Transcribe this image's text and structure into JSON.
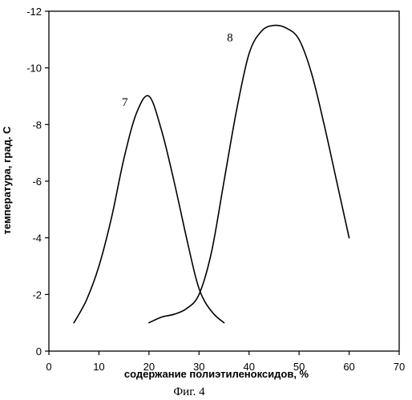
{
  "chart_data": {
    "type": "line",
    "title": "",
    "xlabel": "содержание полиэтиленоксидов, %",
    "ylabel": "температура, град. С",
    "caption": "Фиг. 4",
    "xlim": [
      0,
      70
    ],
    "ylim": [
      0,
      -12
    ],
    "x_ticks": [
      0,
      10,
      20,
      30,
      40,
      50,
      60,
      70
    ],
    "y_ticks": [
      0,
      -2,
      -4,
      -6,
      -8,
      -10,
      -12
    ],
    "x_tick_labels": [
      "0",
      "10",
      "20",
      "30",
      "40",
      "50",
      "60",
      "70"
    ],
    "y_tick_labels": [
      "0",
      "-2",
      "-4",
      "-6",
      "-8",
      "-10",
      "-12"
    ],
    "grid": false,
    "series": [
      {
        "name": "7",
        "points": [
          [
            5,
            -1.0
          ],
          [
            7.5,
            -1.8
          ],
          [
            10,
            -3.0
          ],
          [
            12.5,
            -4.7
          ],
          [
            15,
            -6.8
          ],
          [
            17.5,
            -8.4
          ],
          [
            20,
            -9.0
          ],
          [
            22.5,
            -7.8
          ],
          [
            25,
            -6.0
          ],
          [
            27.5,
            -4.0
          ],
          [
            29.5,
            -2.5
          ],
          [
            31,
            -1.8
          ],
          [
            33,
            -1.3
          ],
          [
            35,
            -1.0
          ]
        ]
      },
      {
        "name": "8",
        "points": [
          [
            20,
            -1.0
          ],
          [
            22.5,
            -1.2
          ],
          [
            25,
            -1.3
          ],
          [
            27.5,
            -1.5
          ],
          [
            30,
            -2.0
          ],
          [
            32.5,
            -3.5
          ],
          [
            35,
            -6.0
          ],
          [
            37.5,
            -8.5
          ],
          [
            40,
            -10.5
          ],
          [
            42.5,
            -11.3
          ],
          [
            45,
            -11.5
          ],
          [
            47.5,
            -11.4
          ],
          [
            50,
            -11.0
          ],
          [
            52.5,
            -9.8
          ],
          [
            55,
            -8.0
          ],
          [
            57.5,
            -6.0
          ],
          [
            60,
            -4.0
          ]
        ]
      }
    ]
  }
}
